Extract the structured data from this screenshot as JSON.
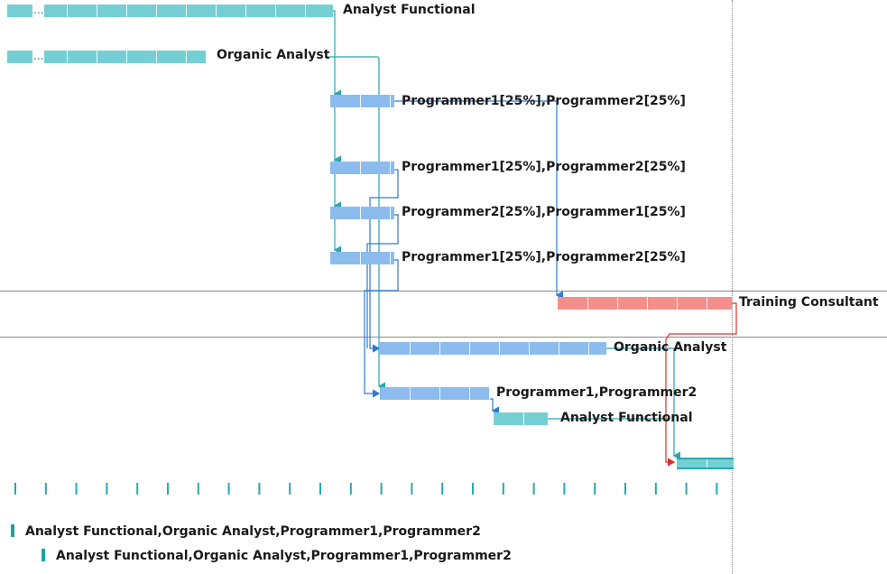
{
  "colors": {
    "teal": "#74cfd5",
    "teal_dark": "#2aa7ad",
    "blue": "#8cbbee",
    "blue_dark": "#2f79d6",
    "red": "#f48f8c",
    "red_dark": "#d6332f",
    "gridline": "#8a8a8a"
  },
  "tasks": [
    {
      "id": "t1",
      "label": "Analyst Functional"
    },
    {
      "id": "t2",
      "label": "Organic Analyst"
    },
    {
      "id": "t3",
      "label": "Programmer1[25%],Programmer2[25%]"
    },
    {
      "id": "t4",
      "label": "Programmer1[25%],Programmer2[25%]"
    },
    {
      "id": "t5",
      "label": "Programmer2[25%],Programmer1[25%]"
    },
    {
      "id": "t6",
      "label": "Programmer1[25%],Programmer2[25%]"
    },
    {
      "id": "t7",
      "label": "Training Consultant"
    },
    {
      "id": "t8",
      "label": "Organic Analyst"
    },
    {
      "id": "t9",
      "label": "Programmer1,Programmer2"
    },
    {
      "id": "t10",
      "label": "Analyst Functional"
    },
    {
      "id": "t11",
      "label": ""
    }
  ],
  "ellipsis": "...",
  "summary_rows": [
    {
      "text": "Analyst Functional,Organic Analyst,Programmer1,Programmer2"
    },
    {
      "text": "Analyst Functional,Organic Analyst,Programmer1,Programmer2"
    }
  ]
}
